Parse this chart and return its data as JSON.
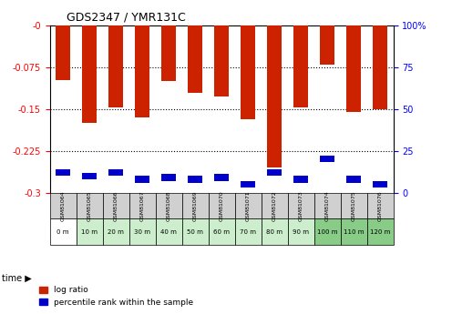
{
  "title": "GDS2347 / YMR131C",
  "samples": [
    "GSM81064",
    "GSM81065",
    "GSM81066",
    "GSM81067",
    "GSM81068",
    "GSM81069",
    "GSM81070",
    "GSM81071",
    "GSM81072",
    "GSM81073",
    "GSM81074",
    "GSM81075",
    "GSM81076"
  ],
  "time_labels": [
    "0 m",
    "10 m",
    "20 m",
    "30 m",
    "40 m",
    "50 m",
    "60 m",
    "70 m",
    "80 m",
    "90 m",
    "100 m",
    "110 m",
    "120 m"
  ],
  "log_ratio": [
    -0.098,
    -0.175,
    -0.148,
    -0.165,
    -0.1,
    -0.122,
    -0.128,
    -0.168,
    -0.255,
    -0.148,
    -0.07,
    -0.155,
    -0.15
  ],
  "percentile_rank": [
    12,
    10,
    12,
    8,
    9,
    8,
    9,
    5,
    12,
    8,
    20,
    8,
    5
  ],
  "bar_color": "#cc2200",
  "blue_color": "#0000cc",
  "ylim": [
    -0.3,
    0
  ],
  "y2lim": [
    0,
    100
  ],
  "yticks": [
    -0.3,
    -0.225,
    -0.15,
    -0.075,
    0
  ],
  "ytick_labels": [
    "-0.3",
    "-0.225",
    "-0.15",
    "-0.075",
    "-0"
  ],
  "y2ticks": [
    0,
    25,
    50,
    75,
    100
  ],
  "y2tick_labels": [
    "0",
    "25",
    "50",
    "75",
    "100%"
  ],
  "gridlines": [
    -0.075,
    -0.15,
    -0.225
  ],
  "bg_gray": "#d0d0d0",
  "bg_green_light": "#cceecc",
  "bg_green_dark": "#88cc88",
  "time_row_colors": [
    "#ffffff",
    "#cceecc",
    "#cceecc",
    "#cceecc",
    "#cceecc",
    "#cceecc",
    "#cceecc",
    "#cceecc",
    "#cceecc",
    "#cceecc",
    "#88cc88",
    "#88cc88",
    "#88cc88"
  ]
}
